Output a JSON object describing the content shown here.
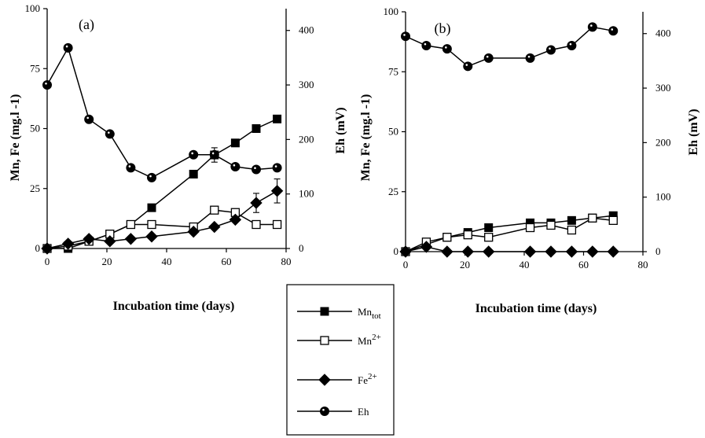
{
  "chart_data": [
    {
      "type": "line",
      "panel_label": "(a)",
      "xlabel": "Incubation time (days)",
      "ylabel_left": "Mn, Fe (mg.l  -1)",
      "ylabel_right": "Eh (mV)",
      "xlim": [
        0,
        80
      ],
      "ylim_left": [
        0,
        100
      ],
      "ylim_right": [
        0,
        440
      ],
      "xticks": [
        "0",
        "20",
        "40",
        "60",
        "80"
      ],
      "yticks_left": [
        "0",
        "25",
        "50",
        "75",
        "100"
      ],
      "yticks_right": [
        "0",
        "100",
        "200",
        "300",
        "400"
      ],
      "series": [
        {
          "name": "Mn_tot",
          "axis": "left",
          "marker": "square-filled",
          "x": [
            0,
            7,
            14,
            21,
            28,
            35,
            49,
            56,
            63,
            70,
            77
          ],
          "y": [
            0,
            0,
            3,
            6,
            10,
            17,
            31,
            39,
            44,
            50,
            54
          ]
        },
        {
          "name": "Mn2+",
          "axis": "left",
          "marker": "square-open",
          "x": [
            0,
            7,
            14,
            21,
            28,
            35,
            49,
            56,
            63,
            70,
            77
          ],
          "y": [
            0,
            1,
            3,
            6,
            10,
            10,
            9,
            16,
            15,
            10,
            10
          ]
        },
        {
          "name": "Fe2+",
          "axis": "left",
          "marker": "diamond-filled",
          "x": [
            0,
            7,
            14,
            21,
            28,
            35,
            49,
            56,
            63,
            70,
            77
          ],
          "y": [
            0,
            2,
            4,
            3,
            4,
            5,
            7,
            9,
            12,
            19,
            24
          ]
        },
        {
          "name": "Eh",
          "axis": "right",
          "marker": "circle-filled",
          "x": [
            0,
            7,
            14,
            21,
            28,
            35,
            49,
            56,
            63,
            70,
            77
          ],
          "y": [
            300,
            368,
            237,
            210,
            148,
            130,
            172,
            172,
            150,
            145,
            148
          ]
        }
      ]
    },
    {
      "type": "line",
      "panel_label": "(b)",
      "xlabel": "Incubation time (days)",
      "ylabel_left": "Mn, Fe (mg.l  -1)",
      "ylabel_right": "Eh (mV)",
      "xlim": [
        0,
        80
      ],
      "ylim_left": [
        0,
        100
      ],
      "ylim_right": [
        0,
        440
      ],
      "xticks": [
        "0",
        "20",
        "40",
        "60",
        "80"
      ],
      "yticks_left": [
        "0",
        "25",
        "50",
        "75",
        "100"
      ],
      "yticks_right": [
        "0",
        "100",
        "200",
        "300",
        "400"
      ],
      "series": [
        {
          "name": "Mn_tot",
          "axis": "left",
          "marker": "square-filled",
          "x": [
            0,
            7,
            14,
            21,
            28,
            42,
            49,
            56,
            63,
            70
          ],
          "y": [
            0,
            3,
            6,
            8,
            10,
            12,
            12,
            13,
            14,
            15
          ]
        },
        {
          "name": "Mn2+",
          "axis": "left",
          "marker": "square-open",
          "x": [
            0,
            7,
            14,
            21,
            28,
            42,
            49,
            56,
            63,
            70
          ],
          "y": [
            0,
            4,
            6,
            7,
            6,
            10,
            11,
            9,
            14,
            13
          ]
        },
        {
          "name": "Fe2+",
          "axis": "left",
          "marker": "diamond-filled",
          "x": [
            0,
            7,
            14,
            21,
            28,
            42,
            49,
            56,
            63,
            70
          ],
          "y": [
            0,
            2,
            0,
            0,
            0,
            0,
            0,
            0,
            0,
            0
          ]
        },
        {
          "name": "Eh",
          "axis": "right",
          "marker": "circle-filled",
          "x": [
            0,
            7,
            14,
            21,
            28,
            42,
            49,
            56,
            63,
            70
          ],
          "y": [
            395,
            378,
            372,
            340,
            355,
            355,
            370,
            378,
            412,
            405
          ]
        }
      ]
    }
  ],
  "legend": [
    {
      "key": "mntot",
      "base": "Mn",
      "sub": "tot",
      "sup": ""
    },
    {
      "key": "mn2",
      "base": "Mn",
      "sub": "",
      "sup": "2+"
    },
    {
      "key": "fe2",
      "base": "Fe",
      "sub": "",
      "sup": "2+"
    },
    {
      "key": "eh",
      "base": "Eh",
      "sub": "",
      "sup": ""
    }
  ]
}
